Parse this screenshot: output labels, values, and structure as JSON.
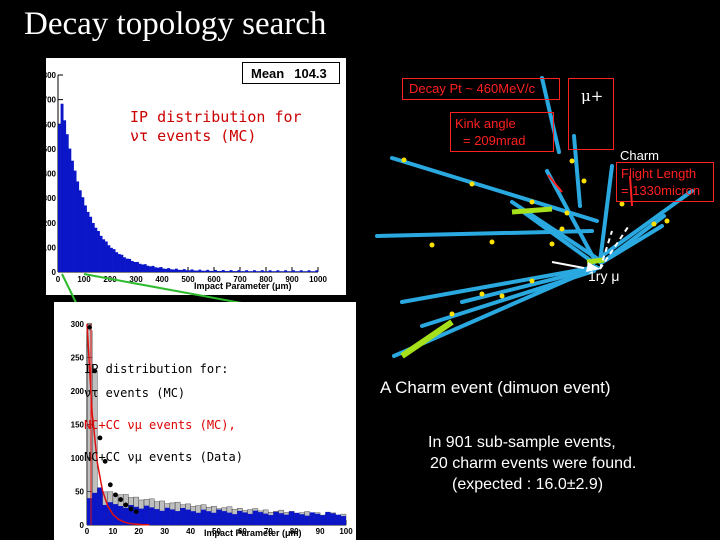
{
  "title": "Decay topology search",
  "histogram_top": {
    "stats_label": "Mean",
    "mean_value": "104.3",
    "caption_line1": "IP distribution for",
    "caption_line2": "ντ events (MC)",
    "y_ticks": [
      "0",
      "100",
      "200",
      "300",
      "400",
      "500",
      "600",
      "700",
      "800"
    ],
    "x_ticks": [
      "0",
      "100",
      "200",
      "300",
      "400",
      "500",
      "600",
      "700",
      "800",
      "900",
      "1000"
    ],
    "x_label": "Impact Parameter (μm)",
    "fill_color": "#0a16c8"
  },
  "histogram_bottom": {
    "legend_title": "IP distribution for:",
    "legend_tau": "ντ events (MC)",
    "legend_mc": "NC+CC νμ events (MC),",
    "legend_data": "NC+CC νμ events (Data)",
    "y_ticks": [
      "0",
      "50",
      "100",
      "150",
      "200",
      "250",
      "300"
    ],
    "x_ticks": [
      "0",
      "10",
      "20",
      "30",
      "40",
      "50",
      "60",
      "70",
      "80",
      "90",
      "100"
    ],
    "x_label": "Impact Parameter (μm)",
    "fill_color": "#0a16c8",
    "mc_color": "#e01010"
  },
  "event_display": {
    "decay_pt": "Decay Pt ~ 460MeV/c",
    "kink_angle_line1": "Kink angle",
    "kink_angle_line2": "= 209mrad",
    "muon_plus": "μ+",
    "charm": "Charm",
    "flight_length_line1": "Flight Length",
    "flight_length_line2": "= 1330micron",
    "primary_muon": "1ry μ",
    "track_color": "#2aa8e0",
    "label_color": "#ff2020"
  },
  "caption": "A Charm event (dimuon event)",
  "summary": {
    "line1": "In 901 sub-sample events,",
    "line2": "20 charm events were found.",
    "line3": "(expected : 16.0±2.9)"
  }
}
